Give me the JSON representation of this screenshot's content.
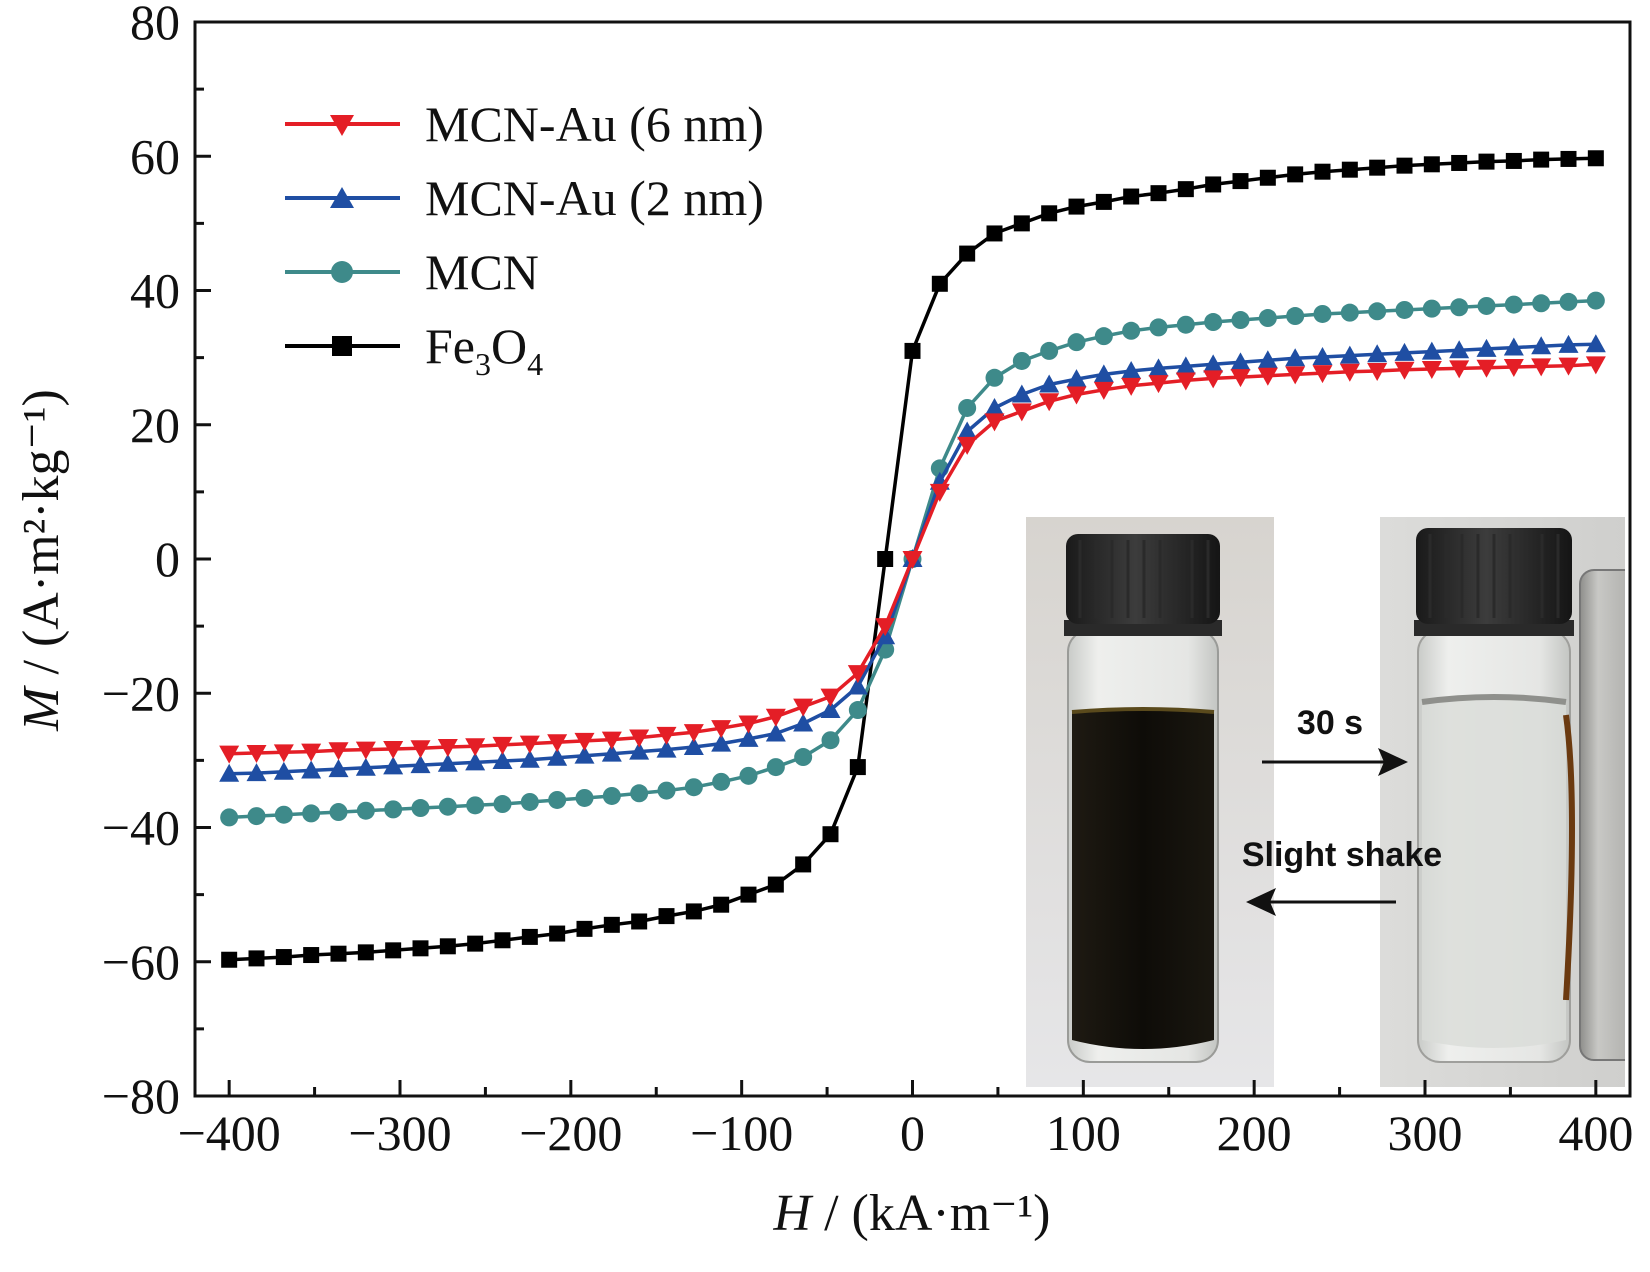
{
  "chart_data": {
    "type": "line",
    "x": [
      -400,
      -384,
      -368,
      -352,
      -336,
      -320,
      -304,
      -288,
      -272,
      -256,
      -240,
      -224,
      -208,
      -192,
      -176,
      -160,
      -144,
      -128,
      -112,
      -96,
      -80,
      -64,
      -48,
      -32,
      -16,
      0,
      16,
      32,
      48,
      64,
      80,
      96,
      112,
      128,
      144,
      160,
      176,
      192,
      208,
      224,
      240,
      256,
      272,
      288,
      304,
      320,
      336,
      352,
      368,
      384,
      400
    ],
    "series": [
      {
        "name": "MCN-Au (6 nm)",
        "color": "#e41e26",
        "marker": "triangle-down",
        "values": [
          -29.0,
          -28.9,
          -28.8,
          -28.7,
          -28.5,
          -28.4,
          -28.3,
          -28.2,
          -28.0,
          -27.9,
          -27.7,
          -27.5,
          -27.3,
          -27.1,
          -26.9,
          -26.6,
          -26.2,
          -25.8,
          -25.2,
          -24.5,
          -23.5,
          -22.0,
          -20.5,
          -17.0,
          -10.0,
          0,
          10.0,
          17.0,
          20.5,
          22.0,
          23.5,
          24.5,
          25.2,
          25.8,
          26.2,
          26.6,
          26.9,
          27.1,
          27.3,
          27.5,
          27.7,
          27.9,
          28.0,
          28.2,
          28.3,
          28.4,
          28.5,
          28.6,
          28.7,
          28.8,
          29.0
        ]
      },
      {
        "name": "MCN-Au (2 nm)",
        "color": "#1f4ea3",
        "marker": "triangle-up",
        "values": [
          -32.0,
          -31.9,
          -31.7,
          -31.5,
          -31.3,
          -31.1,
          -30.9,
          -30.7,
          -30.5,
          -30.3,
          -30.1,
          -29.9,
          -29.6,
          -29.3,
          -29.0,
          -28.7,
          -28.4,
          -28.0,
          -27.5,
          -26.8,
          -26.0,
          -24.5,
          -22.5,
          -19.0,
          -11.5,
          0,
          11.5,
          19.0,
          22.5,
          24.5,
          26.0,
          26.8,
          27.5,
          28.0,
          28.4,
          28.7,
          29.0,
          29.3,
          29.6,
          29.9,
          30.1,
          30.3,
          30.5,
          30.7,
          30.9,
          31.1,
          31.3,
          31.5,
          31.7,
          31.9,
          32.0
        ]
      },
      {
        "name": "MCN",
        "color": "#3e8a8a",
        "marker": "circle",
        "values": [
          -38.5,
          -38.3,
          -38.1,
          -37.9,
          -37.7,
          -37.5,
          -37.3,
          -37.1,
          -36.9,
          -36.7,
          -36.5,
          -36.2,
          -35.9,
          -35.6,
          -35.3,
          -34.9,
          -34.5,
          -34.0,
          -33.2,
          -32.3,
          -31.0,
          -29.5,
          -27.0,
          -22.5,
          -13.5,
          0,
          13.5,
          22.5,
          27.0,
          29.5,
          31.0,
          32.3,
          33.2,
          34.0,
          34.5,
          34.9,
          35.3,
          35.6,
          35.9,
          36.2,
          36.5,
          36.7,
          36.9,
          37.1,
          37.3,
          37.5,
          37.7,
          37.9,
          38.1,
          38.3,
          38.5
        ]
      },
      {
        "name": "Fe3O4",
        "color": "#000000",
        "marker": "square",
        "values": [
          -59.7,
          -59.5,
          -59.3,
          -59.0,
          -58.8,
          -58.6,
          -58.3,
          -58.0,
          -57.7,
          -57.3,
          -56.8,
          -56.3,
          -55.8,
          -55.1,
          -54.5,
          -54.0,
          -53.2,
          -52.5,
          -51.5,
          -50.0,
          -48.5,
          -45.5,
          -41.0,
          -31.0,
          0,
          31.0,
          41.0,
          45.5,
          48.5,
          50.0,
          51.5,
          52.5,
          53.2,
          54.0,
          54.5,
          55.1,
          55.8,
          56.3,
          56.8,
          57.3,
          57.7,
          58.0,
          58.3,
          58.6,
          58.8,
          59.0,
          59.2,
          59.3,
          59.5,
          59.6,
          59.7
        ],
        "x": [
          -400,
          -384,
          -368,
          -352,
          -336,
          -320,
          -304,
          -288,
          -272,
          -256,
          -240,
          -224,
          -208,
          -192,
          -176,
          -160,
          -144,
          -128,
          -112,
          -96,
          -80,
          -64,
          -48,
          -32,
          -16,
          0,
          16,
          32,
          48,
          64,
          80,
          96,
          112,
          128,
          144,
          160,
          176,
          192,
          208,
          224,
          240,
          256,
          272,
          288,
          304,
          320,
          336,
          352,
          368,
          384,
          400
        ]
      }
    ],
    "xlim": [
      -420,
      420
    ],
    "ylim": [
      -80,
      80
    ],
    "xticks": [
      -400,
      -300,
      -200,
      -100,
      0,
      100,
      200,
      300,
      400
    ],
    "yticks": [
      -80,
      -60,
      -40,
      -20,
      0,
      20,
      40,
      60,
      80
    ],
    "xtick_labels": [
      "−400",
      "−300",
      "−200",
      "−100",
      "0",
      "100",
      "200",
      "300",
      "400"
    ],
    "ytick_labels": [
      "−80",
      "−60",
      "−40",
      "−20",
      "0",
      "20",
      "40",
      "60",
      "80"
    ],
    "xlabel_italic": "H",
    "xlabel_rest": " / (kA·m⁻¹)",
    "ylabel_italic": "M",
    "ylabel_rest": " / (A·m²·kg⁻¹)",
    "legend_position": "top-left",
    "grid": false
  },
  "legend": {
    "fe3o4": {
      "fe": "Fe",
      "sub3": "3",
      "o": "O",
      "sub4": "4"
    }
  },
  "inset": {
    "arrow_top_label": "30 s",
    "arrow_bottom_label": "Slight shake"
  }
}
